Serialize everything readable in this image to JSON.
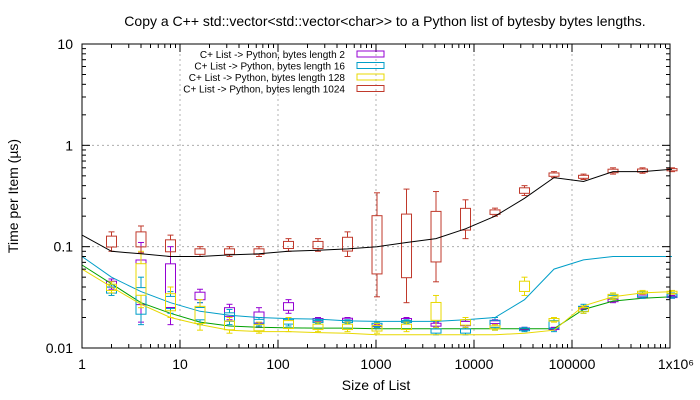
{
  "chart_data": {
    "type": "line",
    "title": "Copy a C++ std::vector<std::vector<char>> to a Python list of bytesby bytes lengths.",
    "xlabel": "Size of List",
    "ylabel": "Time per Item (µs)",
    "x_scale": "log",
    "y_scale": "log",
    "xlim": [
      1,
      1000000
    ],
    "ylim": [
      0.01,
      10
    ],
    "grid": true,
    "legend_position": "top-left",
    "x_ticks": [
      {
        "value": 1,
        "label": "1"
      },
      {
        "value": 10,
        "label": "10"
      },
      {
        "value": 100,
        "label": "100"
      },
      {
        "value": 1000,
        "label": "1000"
      },
      {
        "value": 10000,
        "label": "10000"
      },
      {
        "value": 100000,
        "label": "100000"
      },
      {
        "value": 1000000,
        "label": "1x10⁶"
      }
    ],
    "y_ticks": [
      {
        "value": 0.01,
        "label": "0.01"
      },
      {
        "value": 0.1,
        "label": "0.1"
      },
      {
        "value": 1,
        "label": "1"
      },
      {
        "value": 10,
        "label": "10"
      }
    ],
    "series": [
      {
        "name": "C+ List -> Python, bytes length 2",
        "color": "#9400d3",
        "x": [
          1,
          2,
          4,
          8,
          16,
          32,
          64,
          128,
          256,
          512,
          1024,
          2048,
          4096,
          8192,
          16384,
          32768,
          65536,
          131072,
          262144,
          524288,
          1048576
        ],
        "y": [
          0.066,
          0.043,
          0.028,
          0.022,
          0.018,
          0.0165,
          0.016,
          0.0158,
          0.0157,
          0.0157,
          0.0155,
          0.0155,
          0.0155,
          0.0155,
          0.0155,
          0.0155,
          0.0155,
          0.024,
          0.029,
          0.031,
          0.032
        ],
        "box": [
          [
            2,
            0.038,
            0.048
          ],
          [
            4,
            0.018,
            0.11
          ],
          [
            8,
            0.017,
            0.1
          ],
          [
            16,
            0.028,
            0.038
          ],
          [
            32,
            0.019,
            0.027
          ],
          [
            64,
            0.016,
            0.025
          ],
          [
            128,
            0.022,
            0.03
          ],
          [
            256,
            0.018,
            0.02
          ],
          [
            512,
            0.0185,
            0.02
          ],
          [
            1024,
            0.016,
            0.017
          ],
          [
            2048,
            0.018,
            0.02
          ],
          [
            4096,
            0.016,
            0.018
          ],
          [
            8192,
            0.016,
            0.019
          ],
          [
            16384,
            0.017,
            0.019
          ],
          [
            32768,
            0.015,
            0.016
          ],
          [
            65536,
            0.015,
            0.016
          ],
          [
            131072,
            0.024,
            0.026
          ],
          [
            262144,
            0.028,
            0.031
          ],
          [
            524288,
            0.031,
            0.034
          ],
          [
            1048576,
            0.031,
            0.033
          ]
        ]
      },
      {
        "name": "C+ List -> Python, bytes length 16",
        "color": "#009ec8",
        "x": [
          1,
          2,
          4,
          8,
          16,
          32,
          64,
          128,
          256,
          512,
          1024,
          2048,
          4096,
          8192,
          16384,
          32768,
          65536,
          131072,
          262144,
          524288,
          1048576
        ],
        "y": [
          0.08,
          0.05,
          0.036,
          0.028,
          0.023,
          0.021,
          0.02,
          0.0195,
          0.0193,
          0.0185,
          0.0183,
          0.0183,
          0.0183,
          0.019,
          0.02,
          0.03,
          0.06,
          0.074,
          0.08,
          0.08,
          0.08
        ],
        "box": [
          [
            2,
            0.033,
            0.042
          ],
          [
            4,
            0.017,
            0.05
          ],
          [
            8,
            0.022,
            0.036
          ],
          [
            16,
            0.017,
            0.028
          ],
          [
            32,
            0.017,
            0.024
          ],
          [
            64,
            0.0165,
            0.02
          ],
          [
            128,
            0.0165,
            0.02
          ],
          [
            256,
            0.0175,
            0.019
          ],
          [
            512,
            0.0175,
            0.019
          ],
          [
            1024,
            0.016,
            0.018
          ],
          [
            2048,
            0.0175,
            0.019
          ],
          [
            4096,
            0.0135,
            0.016
          ],
          [
            8192,
            0.0135,
            0.016
          ],
          [
            16384,
            0.015,
            0.02
          ],
          [
            32768,
            0.0145,
            0.016
          ],
          [
            65536,
            0.0145,
            0.02
          ],
          [
            131072,
            0.022,
            0.027
          ],
          [
            262144,
            0.03,
            0.034
          ],
          [
            524288,
            0.031,
            0.036
          ],
          [
            1048576,
            0.031,
            0.035
          ]
        ]
      },
      {
        "name": "C+ List -> Python, bytes length 128",
        "color": "#e8d800",
        "x": [
          1,
          2,
          4,
          8,
          16,
          32,
          64,
          128,
          256,
          512,
          1024,
          2048,
          4096,
          8192,
          16384,
          32768,
          65536,
          131072,
          262144,
          524288,
          1048576
        ],
        "y": [
          0.06,
          0.04,
          0.027,
          0.02,
          0.017,
          0.015,
          0.0145,
          0.0145,
          0.0142,
          0.014,
          0.0135,
          0.0135,
          0.0135,
          0.0135,
          0.0135,
          0.014,
          0.015,
          0.026,
          0.032,
          0.035,
          0.036
        ],
        "box": [
          [
            2,
            0.035,
            0.045
          ],
          [
            4,
            0.025,
            0.09
          ],
          [
            8,
            0.02,
            0.04
          ],
          [
            16,
            0.015,
            0.03
          ],
          [
            32,
            0.014,
            0.02
          ],
          [
            64,
            0.014,
            0.018
          ],
          [
            128,
            0.0145,
            0.02
          ],
          [
            256,
            0.0145,
            0.018
          ],
          [
            512,
            0.0145,
            0.018
          ],
          [
            1024,
            0.014,
            0.0175
          ],
          [
            2048,
            0.0145,
            0.018
          ],
          [
            4096,
            0.016,
            0.033
          ],
          [
            8192,
            0.016,
            0.02
          ],
          [
            16384,
            0.015,
            0.017
          ],
          [
            32768,
            0.033,
            0.05
          ],
          [
            65536,
            0.018,
            0.02
          ],
          [
            131072,
            0.022,
            0.026
          ],
          [
            262144,
            0.03,
            0.035
          ],
          [
            524288,
            0.034,
            0.037
          ],
          [
            1048576,
            0.034,
            0.037
          ]
        ]
      },
      {
        "name": "C+ List -> Python, bytes length 1024",
        "color": "#c0392b",
        "x": [
          1,
          2,
          4,
          8,
          16,
          32,
          64,
          128,
          256,
          512,
          1024,
          2048,
          4096,
          8192,
          16384,
          32768,
          65536,
          131072,
          262144,
          524288,
          1048576
        ],
        "y": [
          0.13,
          0.09,
          0.085,
          0.08,
          0.08,
          0.083,
          0.085,
          0.09,
          0.092,
          0.095,
          0.1,
          0.11,
          0.12,
          0.15,
          0.2,
          0.3,
          0.48,
          0.44,
          0.55,
          0.55,
          0.58
        ],
        "box": [
          [
            2,
            0.09,
            0.14
          ],
          [
            4,
            0.087,
            0.16
          ],
          [
            8,
            0.08,
            0.13
          ],
          [
            16,
            0.08,
            0.1
          ],
          [
            32,
            0.08,
            0.1
          ],
          [
            64,
            0.08,
            0.1
          ],
          [
            128,
            0.09,
            0.12
          ],
          [
            256,
            0.09,
            0.12
          ],
          [
            512,
            0.08,
            0.14
          ],
          [
            1024,
            0.032,
            0.34
          ],
          [
            2048,
            0.028,
            0.37
          ],
          [
            4096,
            0.045,
            0.35
          ],
          [
            8192,
            0.12,
            0.29
          ],
          [
            16384,
            0.2,
            0.24
          ],
          [
            32768,
            0.32,
            0.4
          ],
          [
            65536,
            0.48,
            0.55
          ],
          [
            131072,
            0.46,
            0.52
          ],
          [
            262144,
            0.52,
            0.6
          ],
          [
            524288,
            0.53,
            0.6
          ],
          [
            1048576,
            0.55,
            0.6
          ]
        ]
      }
    ]
  }
}
